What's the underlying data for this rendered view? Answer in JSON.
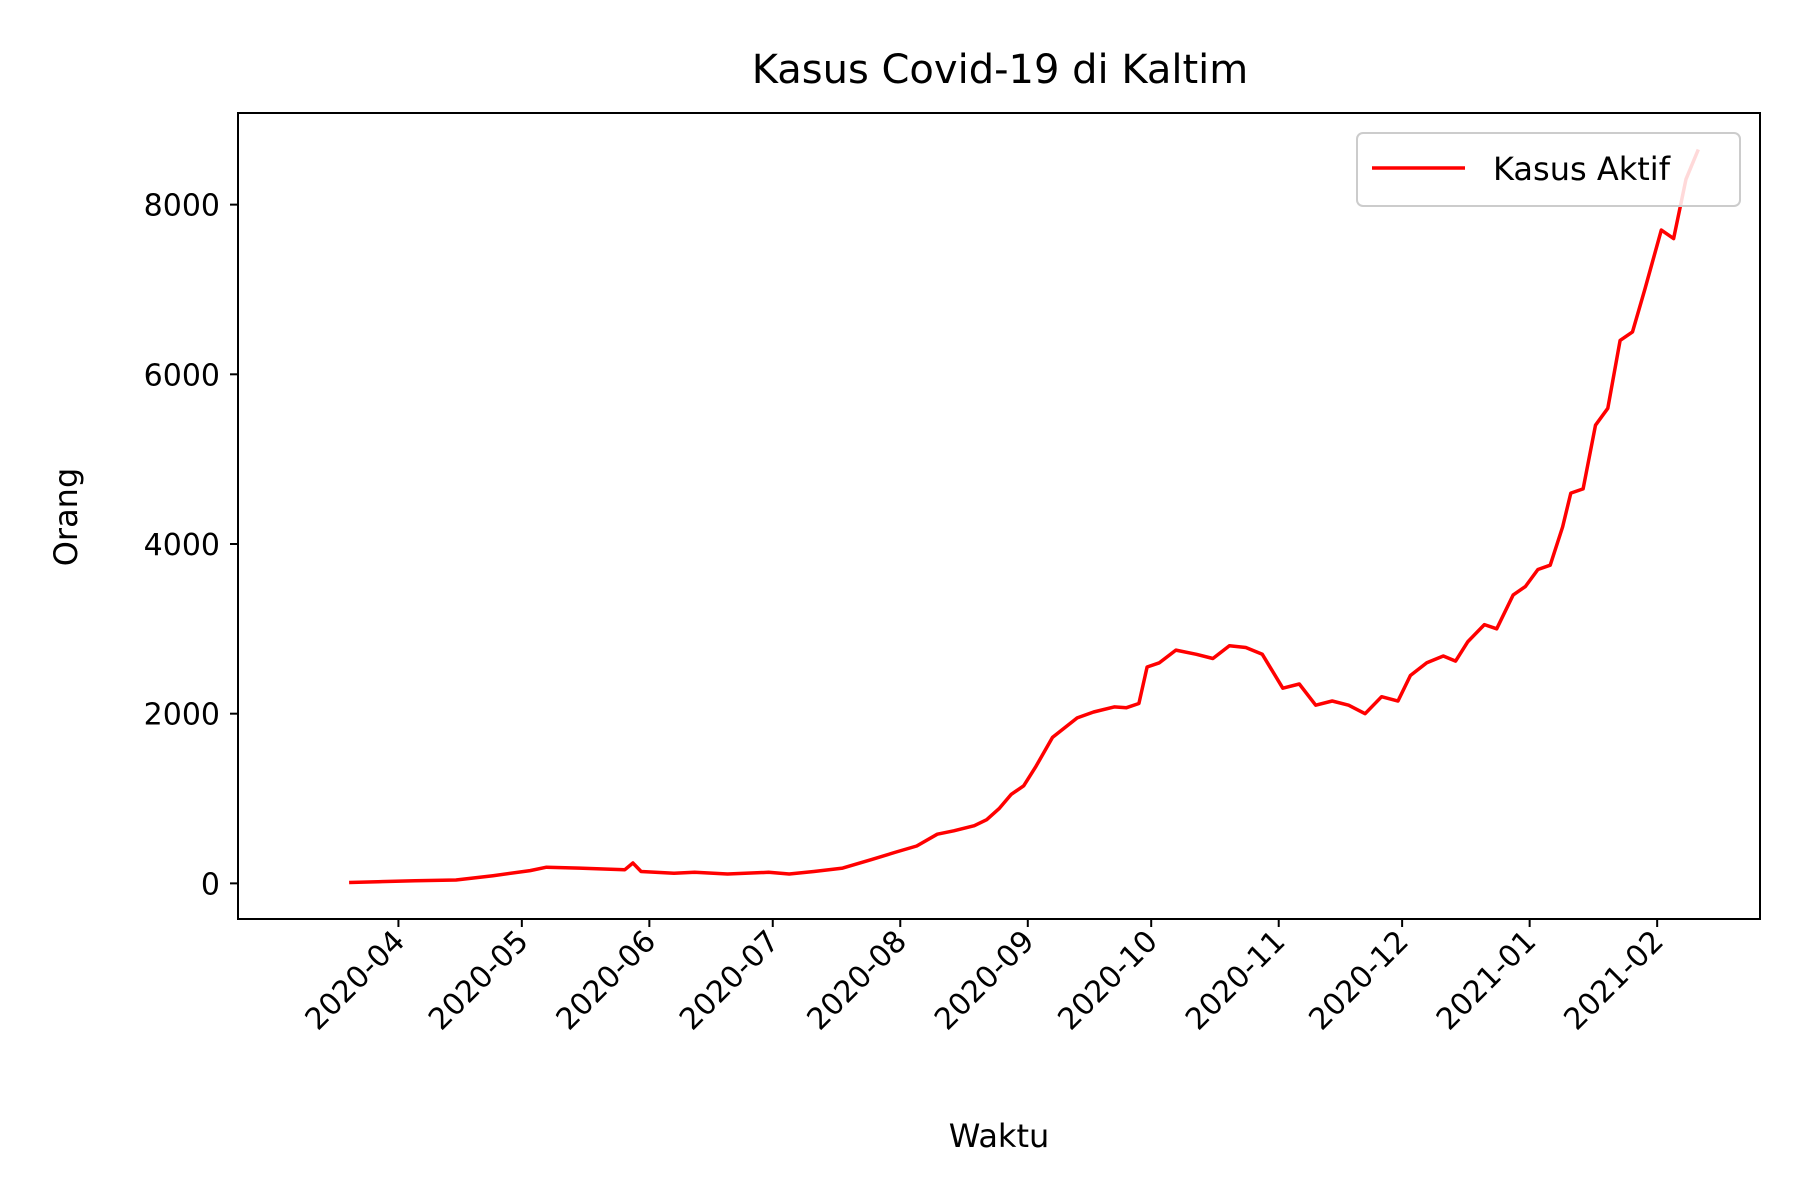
{
  "chart_data": {
    "type": "line",
    "title": "Kasus Covid-19 di Kaltim",
    "xlabel": "Waktu",
    "ylabel": "Orang",
    "xlim": [
      "2020-02-22",
      "2021-02-26"
    ],
    "ylim": [
      -420,
      9080
    ],
    "x_ticks": [
      "2020-04",
      "2020-05",
      "2020-06",
      "2020-07",
      "2020-08",
      "2020-09",
      "2020-10",
      "2020-11",
      "2020-12",
      "2021-01",
      "2021-02"
    ],
    "y_ticks": [
      0,
      2000,
      4000,
      6000,
      8000
    ],
    "grid": false,
    "legend": {
      "position": "top-right"
    },
    "series": [
      {
        "name": "Kasus Aktif",
        "color": "#ff0000",
        "x": [
          "2020-03-20",
          "2020-03-27",
          "2020-04-05",
          "2020-04-15",
          "2020-04-24",
          "2020-05-03",
          "2020-05-07",
          "2020-05-15",
          "2020-05-26",
          "2020-05-28",
          "2020-05-30",
          "2020-06-07",
          "2020-06-12",
          "2020-06-20",
          "2020-06-30",
          "2020-07-05",
          "2020-07-11",
          "2020-07-18",
          "2020-07-25",
          "2020-07-31",
          "2020-08-05",
          "2020-08-10",
          "2020-08-14",
          "2020-08-19",
          "2020-08-22",
          "2020-08-25",
          "2020-08-28",
          "2020-08-31",
          "2020-09-03",
          "2020-09-07",
          "2020-09-13",
          "2020-09-17",
          "2020-09-22",
          "2020-09-25",
          "2020-09-28",
          "2020-09-30",
          "2020-10-03",
          "2020-10-07",
          "2020-10-12",
          "2020-10-16",
          "2020-10-20",
          "2020-10-24",
          "2020-10-28",
          "2020-11-02",
          "2020-11-06",
          "2020-11-10",
          "2020-11-14",
          "2020-11-18",
          "2020-11-22",
          "2020-11-26",
          "2020-11-30",
          "2020-12-03",
          "2020-12-07",
          "2020-12-11",
          "2020-12-14",
          "2020-12-17",
          "2020-12-21",
          "2020-12-24",
          "2020-12-28",
          "2020-12-31",
          "2021-01-03",
          "2021-01-06",
          "2021-01-09",
          "2021-01-11",
          "2021-01-14",
          "2021-01-17",
          "2021-01-20",
          "2021-01-23",
          "2021-01-26",
          "2021-01-29",
          "2021-02-02",
          "2021-02-05",
          "2021-02-08",
          "2021-02-11"
        ],
        "y": [
          10,
          20,
          30,
          40,
          90,
          150,
          190,
          180,
          160,
          240,
          140,
          120,
          130,
          110,
          130,
          110,
          140,
          180,
          280,
          370,
          440,
          580,
          620,
          680,
          750,
          880,
          1050,
          1150,
          1380,
          1720,
          1950,
          2020,
          2080,
          2070,
          2120,
          2550,
          2600,
          2750,
          2700,
          2650,
          2800,
          2780,
          2700,
          2300,
          2350,
          2100,
          2150,
          2100,
          2000,
          2200,
          2150,
          2450,
          2600,
          2680,
          2620,
          2850,
          3050,
          3000,
          3400,
          3500,
          3700,
          3750,
          4200,
          4600,
          4650,
          5400,
          5600,
          6400,
          6500,
          7000,
          7700,
          7600,
          8300,
          8650
        ]
      }
    ]
  }
}
